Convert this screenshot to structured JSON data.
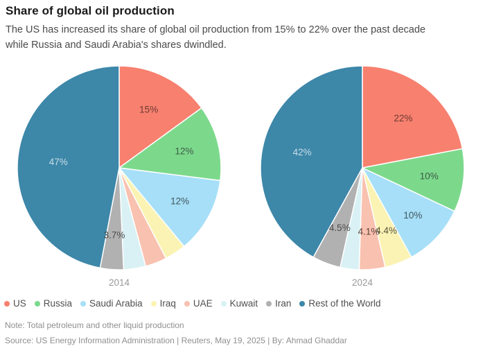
{
  "header": {
    "title": "Share of global oil production",
    "subtitle": "The US has increased its share of global oil production from 15% to 22% over the past decade\nwhile Russia and Saudi Arabia's shares dwindled."
  },
  "segments": [
    {
      "name": "US",
      "color": "#f8806f",
      "label_color": "#6b3a33"
    },
    {
      "name": "Russia",
      "color": "#7cd98c",
      "label_color": "#3e5a46"
    },
    {
      "name": "Saudi Arabia",
      "color": "#a6dff7",
      "label_color": "#41565f"
    },
    {
      "name": "Iraq",
      "color": "#fbf3b3",
      "label_color": "#59553f"
    },
    {
      "name": "UAE",
      "color": "#f9c1af",
      "label_color": "#62443c"
    },
    {
      "name": "Kuwait",
      "color": "#d9f1f4",
      "label_color": "#4b4b4b"
    },
    {
      "name": "Iran",
      "color": "#b1b1b1",
      "label_color": "#4b4b4b"
    },
    {
      "name": "Rest of the World",
      "color": "#3d87a9",
      "label_color": "#c9dee8"
    }
  ],
  "chart_data": [
    {
      "type": "pie",
      "title": "2014",
      "categories": [
        "US",
        "Russia",
        "Saudi Arabia",
        "Iraq",
        "UAE",
        "Kuwait",
        "Iran",
        "Rest of the World"
      ],
      "values": [
        15,
        12,
        12,
        3.4,
        3.4,
        3.5,
        3.7,
        47
      ],
      "labels": [
        "15%",
        "12%",
        "12%",
        "",
        "",
        "",
        "3.7%",
        "47%"
      ],
      "label_radius": [
        0.64,
        0.66,
        0.68,
        0,
        0,
        0,
        0.66,
        0.6
      ],
      "start_angle": "top",
      "direction": "clockwise",
      "legend_position": "bottom"
    },
    {
      "type": "pie",
      "title": "2024",
      "categories": [
        "US",
        "Russia",
        "Saudi Arabia",
        "Iraq",
        "UAE",
        "Kuwait",
        "Iran",
        "Rest of the World"
      ],
      "values": [
        22,
        10,
        10,
        4.4,
        4.1,
        3.0,
        4.5,
        42
      ],
      "labels": [
        "22%",
        "10%",
        "10%",
        "4.4%",
        "4.1%",
        "",
        "4.5%",
        "42%"
      ],
      "label_radius": [
        0.63,
        0.66,
        0.68,
        0.66,
        0.63,
        0,
        0.63,
        0.61
      ],
      "start_angle": "top",
      "direction": "clockwise",
      "legend_position": "bottom"
    }
  ],
  "footer": {
    "note": "Note: Total petroleum and other liquid production",
    "source": "Source: US Energy Information Administration | Reuters, May 19, 2025 | By: Ahmad Ghaddar"
  }
}
